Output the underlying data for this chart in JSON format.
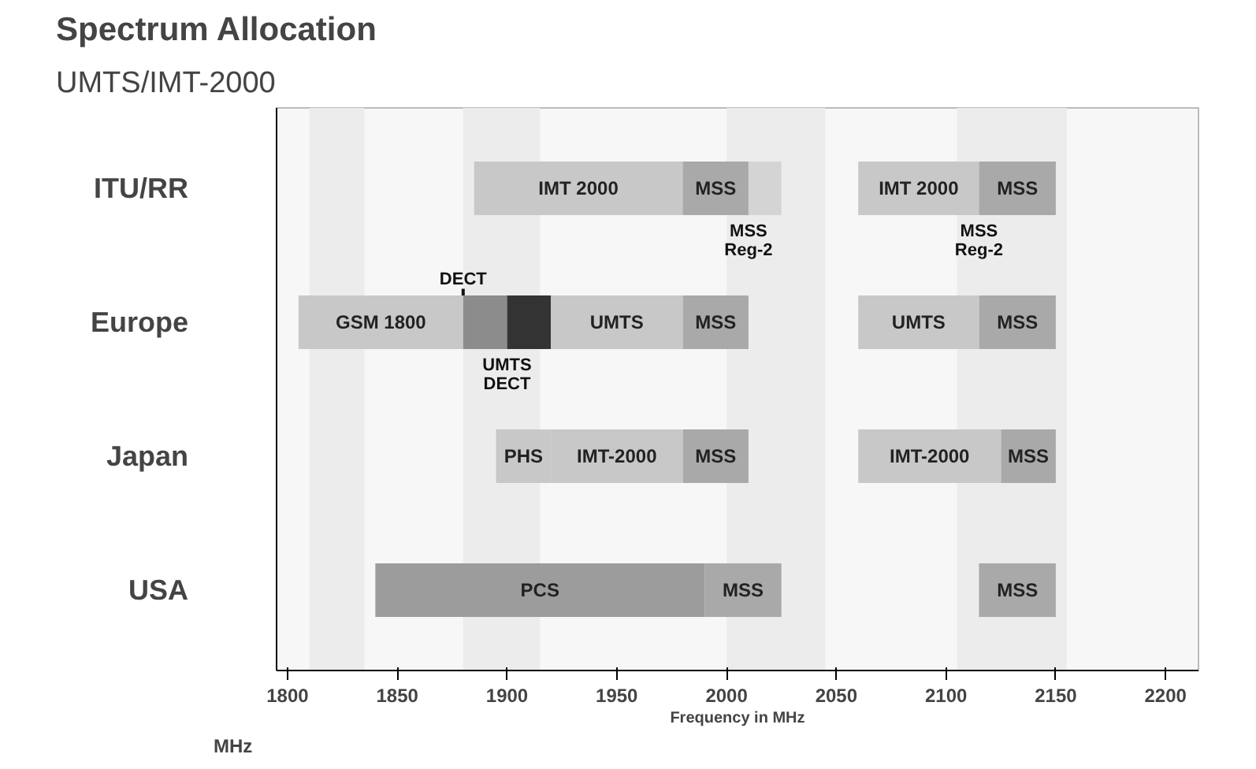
{
  "chart_data": {
    "type": "bar",
    "orientation": "horizontal",
    "title": "Spectrum Allocation",
    "subtitle": "UMTS/IMT-2000",
    "xlabel": "Frequency in MHz",
    "categories": [
      "ITU/RR",
      "Europe",
      "Japan",
      "USA"
    ],
    "xlim": [
      1795,
      2215
    ],
    "xticks": [
      1800,
      1850,
      1900,
      1950,
      2000,
      2050,
      2100,
      2150,
      2200
    ],
    "grid": false,
    "bands": [
      {
        "axis": "x",
        "from": 1810,
        "to": 1835,
        "color": "#ececec"
      },
      {
        "axis": "x",
        "from": 1880,
        "to": 1915,
        "color": "#ececec"
      },
      {
        "axis": "x",
        "from": 2000,
        "to": 2045,
        "color": "#ececec"
      },
      {
        "axis": "x",
        "from": 2105,
        "to": 2155,
        "color": "#ececec"
      }
    ],
    "series": [
      {
        "name": "IMT 2000",
        "color": "#c8c8c8",
        "base": [
          1885,
          null,
          null,
          null
        ],
        "values": [
          95,
          null,
          null,
          null
        ]
      },
      {
        "name": "MSS",
        "color": "#a9a9a9",
        "base": [
          1980,
          1980,
          1980,
          null
        ],
        "values": [
          30,
          30,
          30,
          null
        ]
      },
      {
        "color": "#d4d4d4",
        "base": [
          2010,
          null,
          null,
          null
        ],
        "values": [
          15,
          null,
          null,
          null
        ]
      },
      {
        "name": "IMT 2000",
        "color": "#c8c8c8",
        "base": [
          2060,
          null,
          null,
          null
        ],
        "values": [
          55,
          null,
          null,
          null
        ]
      },
      {
        "name": "MSS",
        "color": "#a9a9a9",
        "base": [
          2115,
          2115,
          2125,
          2115
        ],
        "values": [
          35,
          35,
          25,
          35
        ]
      },
      {
        "name": "GSM 1800",
        "color": "#c8c8c8",
        "base": [
          null,
          1805,
          null,
          null
        ],
        "values": [
          null,
          75,
          null,
          null
        ]
      },
      {
        "color": "#8c8c8c",
        "base": [
          null,
          1880,
          null,
          null
        ],
        "values": [
          null,
          20,
          null,
          null
        ]
      },
      {
        "color": "#333333",
        "base": [
          null,
          1900,
          null,
          null
        ],
        "values": [
          null,
          20,
          null,
          null
        ]
      },
      {
        "name": "UMTS",
        "color": "#c8c8c8",
        "base": [
          null,
          1920,
          null,
          null
        ],
        "values": [
          null,
          60,
          null,
          null
        ]
      },
      {
        "name": "UMTS",
        "color": "#c8c8c8",
        "base": [
          null,
          2060,
          null,
          null
        ],
        "values": [
          null,
          55,
          null,
          null
        ]
      },
      {
        "name": "PHS",
        "color": "#c8c8c8",
        "base": [
          null,
          null,
          1895,
          null
        ],
        "values": [
          null,
          null,
          25,
          null
        ]
      },
      {
        "name": "IMT-2000",
        "color": "#c8c8c8",
        "base": [
          null,
          null,
          1920,
          null
        ],
        "values": [
          null,
          null,
          60,
          null
        ]
      },
      {
        "name": "IMT-2000",
        "color": "#c8c8c8",
        "base": [
          null,
          null,
          2060,
          null
        ],
        "values": [
          null,
          null,
          65,
          null
        ]
      },
      {
        "name": "PCS",
        "color": "#9c9c9c",
        "base": [
          null,
          null,
          null,
          1840
        ],
        "values": [
          null,
          null,
          null,
          150
        ]
      },
      {
        "name": "MSS",
        "color": "#a9a9a9",
        "base": [
          null,
          null,
          null,
          1990
        ],
        "values": [
          null,
          null,
          null,
          35
        ]
      }
    ],
    "annotations": [
      {
        "text": "MSS Reg-2",
        "x": 2010,
        "y": "ITU/RR"
      },
      {
        "text": "MSS Reg-2",
        "x": 2115,
        "y": "ITU/RR"
      },
      {
        "text": "DECT",
        "x": 1880,
        "y": "Europe"
      },
      {
        "text": "UMTS DECT",
        "x": 1900,
        "y": "Europe"
      },
      "MHz"
    ]
  }
}
